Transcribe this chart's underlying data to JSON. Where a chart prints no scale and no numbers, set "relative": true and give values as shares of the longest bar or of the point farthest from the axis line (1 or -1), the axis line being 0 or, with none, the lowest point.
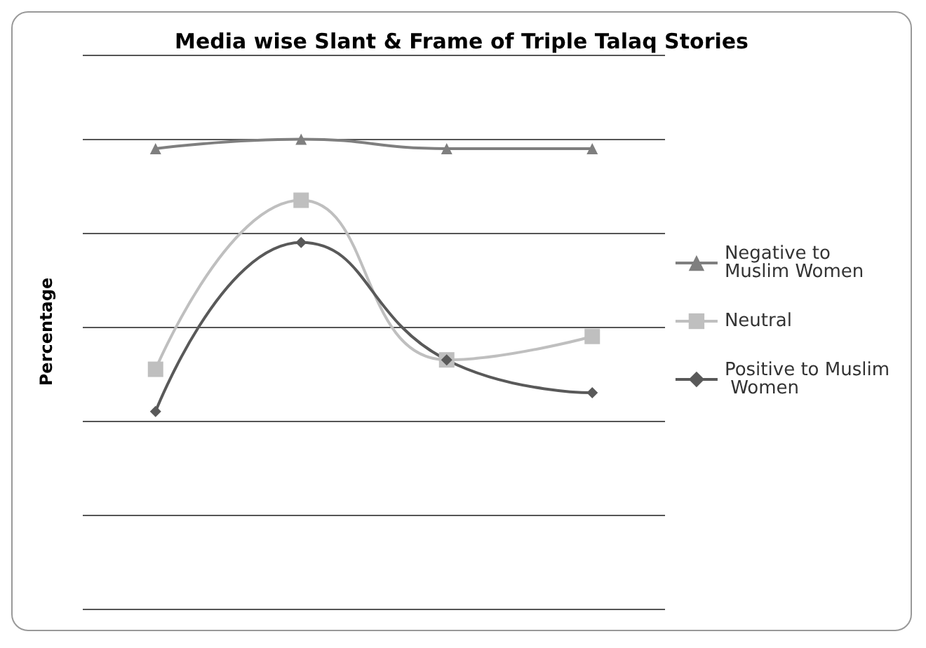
{
  "chart_data": {
    "type": "line",
    "title": "Media wise Slant & Frame of Triple Talaq Stories",
    "ylabel": "Percentage",
    "relative": true,
    "categories": [
      null,
      null,
      null,
      null
    ],
    "series": [
      {
        "name": "Negative to Muslim Women",
        "color": "#7f7f7f",
        "marker": "triangle",
        "values": [
          0.98,
          1,
          0.98,
          0.98
        ]
      },
      {
        "name": "Neutral",
        "color": "#bfbfbf",
        "marker": "square",
        "values": [
          0.51,
          0.87,
          0.53,
          0.58
        ]
      },
      {
        "name": "Positive to Muslim Women",
        "color": "#595959",
        "marker": "diamond",
        "values": [
          0.42,
          0.78,
          0.53,
          0.46
        ]
      }
    ],
    "grid": "y",
    "legend": "right",
    "line_style": "solid"
  }
}
